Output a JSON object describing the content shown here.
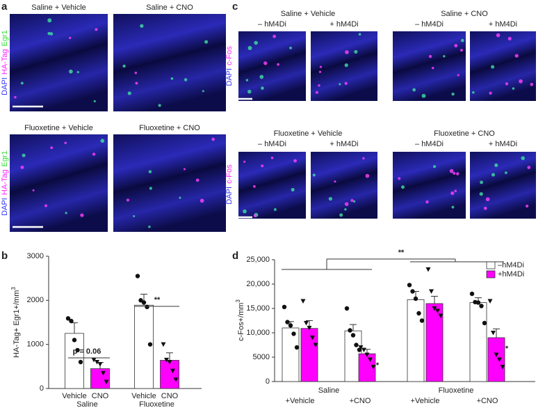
{
  "figure": {
    "panel_labels": [
      "a",
      "b",
      "c",
      "d"
    ],
    "panel_a": {
      "stain": [
        "DAPI",
        "HA-Tag",
        "Egr1"
      ],
      "images": [
        "Saline + Vehicle",
        "Saline + CNO",
        "Fluoxetine + Vehicle",
        "Fluoxetine + CNO"
      ]
    },
    "panel_c": {
      "stain": [
        "DAPI",
        "c-Fos"
      ],
      "groups": [
        "Saline + Vehicle",
        "Saline + CNO",
        "Fluoxetine + Vehicle",
        "Fluoxetine + CNO"
      ],
      "conditions": [
        "– hM4Di",
        "+ hM4Di"
      ]
    }
  },
  "chart_data": [
    {
      "type": "bar",
      "ylabel": "HA-Tag+ Egr1+/mm",
      "ylabel_sup": "3",
      "categories": [
        "Saline",
        "Fluoxetine"
      ],
      "series": [
        {
          "name": "Vehicle",
          "color": "#ffffff",
          "values": [
            1250,
            1890
          ],
          "errors": [
            240,
            250
          ],
          "points": [
            [
              1590,
              1530,
              1100,
              870,
              600
            ],
            [
              2550,
              2000,
              1950,
              1850,
              1000
            ]
          ]
        },
        {
          "name": "CNO",
          "color": "#ff00ff",
          "values": [
            450,
            640
          ],
          "errors": [
            140,
            170
          ],
          "points": [
            [
              650,
              600,
              550,
              350,
              150
            ],
            [
              1000,
              650,
              600,
              400,
              200
            ]
          ]
        }
      ],
      "ylim": [
        0,
        3000
      ],
      "yticks": [
        0,
        1000,
        2000,
        3000
      ],
      "annotations": [
        "p = 0.06",
        "**"
      ]
    },
    {
      "type": "bar",
      "ylabel": "c-Fos+/mm",
      "ylabel_sup": "3",
      "groups": [
        "Saline",
        "Fluoxetine"
      ],
      "categories": [
        "+Vehicle",
        "+CNO",
        "+Vehicle",
        "+CNO"
      ],
      "series": [
        {
          "name": "–hM4Di",
          "color": "#ffffff",
          "values": [
            11000,
            10400,
            16800,
            16200
          ],
          "errors": [
            1300,
            1300,
            1700,
            1000
          ],
          "points": [
            [
              15300,
              12200,
              11500,
              9800,
              7000
            ],
            [
              15000,
              10500,
              9500,
              7500,
              6500
            ],
            [
              19800,
              18500,
              17000,
              14000,
              12500
            ],
            [
              18000,
              16300,
              16200,
              15500,
              12000
            ]
          ]
        },
        {
          "name": "+hM4Di",
          "color": "#ff00ff",
          "values": [
            10900,
            5700,
            16000,
            9000
          ],
          "errors": [
            1600,
            900,
            1500,
            1800
          ],
          "points": [
            [
              16500,
              12000,
              11000,
              9000,
              7500
            ],
            [
              7000,
              6500,
              5500,
              4500,
              3000
            ],
            [
              23000,
              18500,
              15000,
              14500,
              13500
            ],
            [
              16500,
              10000,
              5500,
              4500,
              3000
            ]
          ]
        }
      ],
      "ylim": [
        0,
        25000
      ],
      "yticks": [
        0,
        5000,
        {
          "value": 10000,
          "label": "10,000"
        },
        {
          "value": 15000,
          "label": "15,000"
        },
        {
          "value": 20000,
          "label": "20,000"
        },
        {
          "value": 25000,
          "label": "25,000"
        }
      ],
      "annotations": [
        "**",
        "*"
      ]
    }
  ]
}
